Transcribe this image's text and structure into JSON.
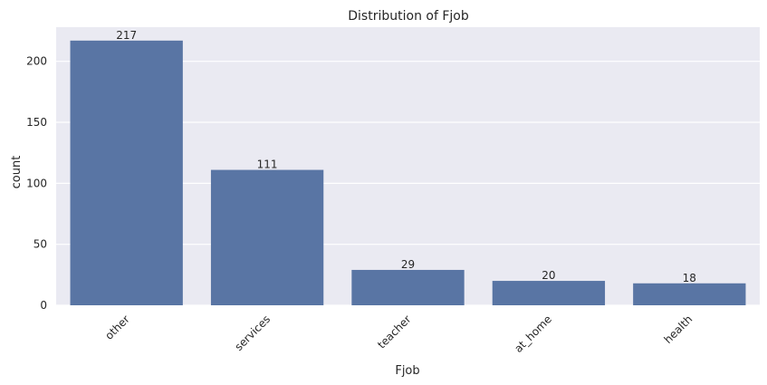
{
  "chart_data": {
    "type": "bar",
    "title": "Distribution of Fjob",
    "xlabel": "Fjob",
    "ylabel": "count",
    "categories": [
      "other",
      "services",
      "teacher",
      "at_home",
      "health"
    ],
    "values": [
      217,
      111,
      29,
      20,
      18
    ],
    "data_labels": [
      "217",
      "111",
      "29",
      "20",
      "18"
    ],
    "ylim": [
      0,
      228
    ],
    "yticks": [
      0,
      50,
      100,
      150,
      200
    ],
    "ytick_labels": [
      "0",
      "50",
      "100",
      "150",
      "200"
    ],
    "grid": true,
    "bar_color": "#5975a4",
    "background_color": "#eaeaf2",
    "xtick_rotation": -45
  }
}
